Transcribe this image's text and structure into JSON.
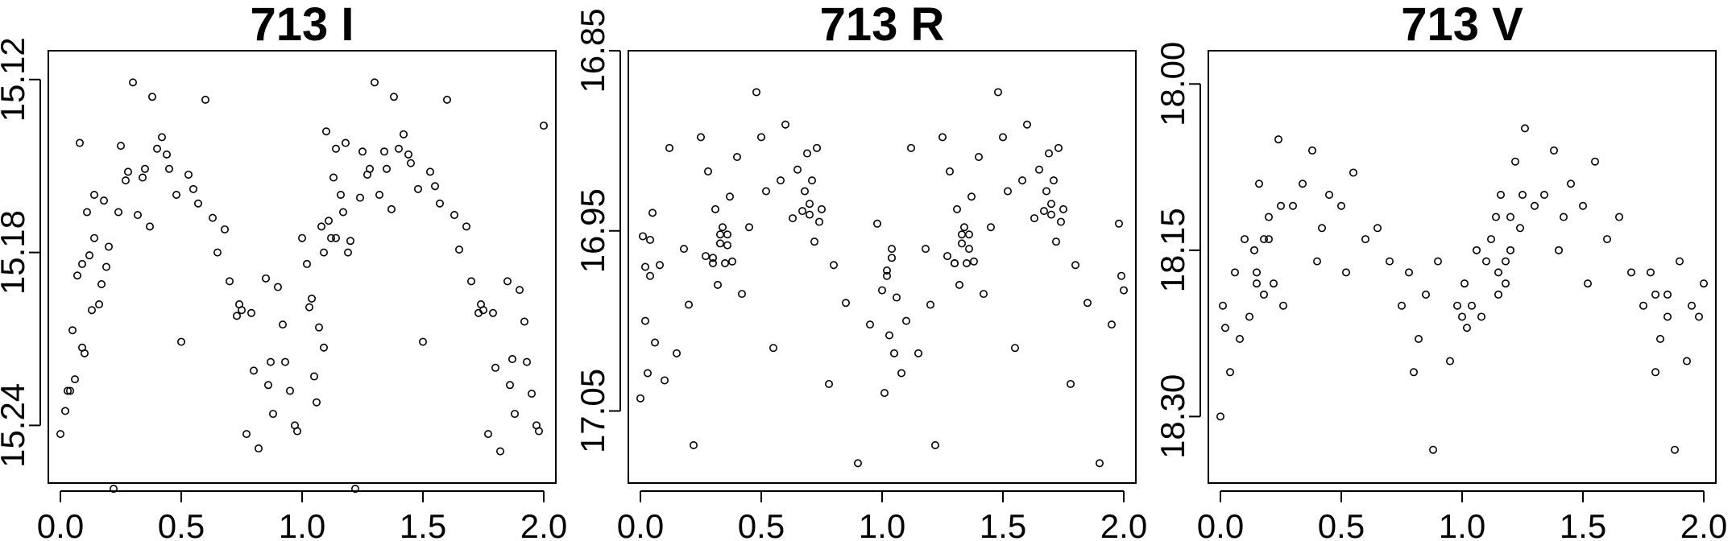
{
  "chart_data": [
    {
      "type": "scatter",
      "title": "713 I",
      "xlabel": "",
      "ylabel": "",
      "xlim": [
        -0.05,
        2.05
      ],
      "ylim": [
        15.26,
        15.11
      ],
      "xticks": [
        "0.0",
        "0.5",
        "1.0",
        "1.5",
        "2.0"
      ],
      "yticks": [
        "15.12",
        "15.18",
        "15.24"
      ],
      "grid": false,
      "series": [
        {
          "x": [
            0.0,
            0.02,
            0.03,
            0.05,
            0.06,
            0.07,
            0.08,
            0.09,
            0.1,
            0.11,
            0.12,
            0.13,
            0.14,
            0.16,
            0.17,
            0.18,
            0.2,
            0.22,
            0.24,
            0.25,
            0.27,
            0.3,
            0.32,
            0.34,
            0.37,
            0.38,
            0.4,
            0.42,
            0.45,
            0.48,
            0.5,
            0.53,
            0.55,
            0.6,
            0.63,
            0.65,
            0.68,
            0.7,
            0.73,
            0.75,
            0.77,
            0.8,
            0.82,
            0.85,
            0.87,
            0.88,
            0.9,
            0.92,
            0.95,
            0.97,
            1.0,
            1.02,
            1.03,
            1.05,
            1.06,
            1.07,
            1.08,
            1.09,
            1.1,
            1.11,
            1.12,
            1.13,
            1.14,
            1.16,
            1.17,
            1.18,
            1.2,
            1.22,
            1.24,
            1.25,
            1.27,
            1.3,
            1.32,
            1.34,
            1.37,
            1.38,
            1.4,
            1.42,
            1.45,
            1.48,
            1.5,
            1.53,
            1.55,
            1.6,
            1.63,
            1.65,
            1.68,
            1.7,
            1.73,
            1.75,
            1.77,
            1.8,
            1.82,
            1.85,
            1.87,
            1.88,
            1.9,
            1.92,
            1.95,
            1.97,
            2.0,
            0.04,
            0.09,
            0.14,
            0.19,
            0.28,
            0.35,
            0.44,
            0.57,
            0.74,
            0.79,
            0.86,
            0.93,
            0.98,
            1.04,
            1.09,
            1.14,
            1.19,
            1.28,
            1.35,
            1.44,
            1.57,
            1.74,
            1.79,
            1.86,
            1.93,
            1.98
          ],
          "y": [
            15.243,
            15.235,
            15.228,
            15.207,
            15.224,
            15.188,
            15.142,
            15.213,
            15.215,
            15.166,
            15.181,
            15.2,
            15.16,
            15.198,
            15.191,
            15.162,
            15.178,
            15.262,
            15.166,
            15.143,
            15.155,
            15.121,
            15.167,
            15.154,
            15.171,
            15.126,
            15.144,
            15.14,
            15.151,
            15.16,
            15.211,
            15.153,
            15.158,
            15.127,
            15.168,
            15.18,
            15.172,
            15.19,
            15.202,
            15.2,
            15.243,
            15.221,
            15.248,
            15.189,
            15.218,
            15.236,
            15.192,
            15.205,
            15.228,
            15.24,
            15.175,
            15.184,
            15.199,
            15.223,
            15.232,
            15.206,
            15.171,
            15.213,
            15.138,
            15.169,
            15.175,
            15.154,
            15.144,
            15.16,
            15.166,
            15.142,
            15.176,
            15.262,
            15.161,
            15.145,
            15.153,
            15.121,
            15.16,
            15.145,
            15.165,
            15.126,
            15.144,
            15.139,
            15.149,
            15.158,
            15.211,
            15.152,
            15.157,
            15.127,
            15.167,
            15.179,
            15.171,
            15.19,
            15.201,
            15.2,
            15.243,
            15.22,
            15.249,
            15.19,
            15.217,
            15.236,
            15.193,
            15.204,
            15.229,
            15.24,
            15.136,
            15.228,
            15.184,
            15.175,
            15.185,
            15.152,
            15.151,
            15.146,
            15.163,
            15.198,
            15.201,
            15.226,
            15.218,
            15.242,
            15.196,
            15.18,
            15.175,
            15.18,
            15.151,
            15.151,
            15.146,
            15.163,
            15.198,
            15.201,
            15.226,
            15.218,
            15.242
          ]
        }
      ]
    },
    {
      "type": "scatter",
      "title": "713 R",
      "xlabel": "",
      "ylabel": "",
      "xlim": [
        -0.05,
        2.05
      ],
      "ylim": [
        17.09,
        16.85
      ],
      "xticks": [
        "0.0",
        "0.5",
        "1.0",
        "1.5",
        "2.0"
      ],
      "yticks": [
        "16.85",
        "16.95",
        "17.05"
      ],
      "grid": false,
      "series": [
        {
          "x": [
            0.0,
            0.01,
            0.02,
            0.03,
            0.04,
            0.05,
            0.06,
            0.08,
            0.1,
            0.12,
            0.15,
            0.18,
            0.2,
            0.22,
            0.25,
            0.27,
            0.28,
            0.3,
            0.31,
            0.32,
            0.33,
            0.34,
            0.35,
            0.36,
            0.37,
            0.38,
            0.4,
            0.42,
            0.45,
            0.48,
            0.5,
            0.52,
            0.55,
            0.58,
            0.6,
            0.63,
            0.65,
            0.67,
            0.68,
            0.69,
            0.7,
            0.71,
            0.72,
            0.73,
            0.75,
            0.78,
            0.8,
            0.85,
            0.9,
            0.95,
            0.98,
            1.0,
            1.01,
            1.02,
            1.03,
            1.04,
            1.05,
            1.06,
            1.08,
            1.1,
            1.12,
            1.15,
            1.18,
            1.2,
            1.22,
            1.25,
            1.27,
            1.28,
            1.3,
            1.31,
            1.32,
            1.33,
            1.34,
            1.35,
            1.36,
            1.37,
            1.38,
            1.4,
            1.42,
            1.45,
            1.48,
            1.5,
            1.52,
            1.55,
            1.58,
            1.6,
            1.63,
            1.65,
            1.67,
            1.68,
            1.69,
            1.7,
            1.71,
            1.72,
            1.73,
            1.75,
            1.78,
            1.8,
            1.85,
            1.9,
            1.95,
            1.98,
            2.0,
            0.02,
            0.04,
            0.3,
            0.33,
            0.36,
            0.7,
            0.74,
            1.02,
            1.04,
            1.3,
            1.33,
            1.36,
            1.7,
            1.74,
            1.99
          ],
          "y": [
            17.043,
            16.953,
            17.0,
            17.029,
            16.975,
            16.94,
            17.012,
            16.969,
            17.033,
            16.904,
            17.018,
            16.96,
            16.991,
            17.069,
            16.898,
            16.964,
            16.917,
            16.968,
            16.938,
            16.98,
            16.957,
            16.948,
            16.968,
            16.952,
            16.931,
            16.967,
            16.909,
            16.985,
            16.948,
            16.873,
            16.898,
            16.928,
            17.015,
            16.922,
            16.891,
            16.943,
            16.916,
            16.939,
            16.928,
            16.907,
            16.941,
            16.922,
            16.956,
            16.904,
            16.938,
            17.035,
            16.969,
            16.99,
            17.079,
            17.002,
            16.946,
            16.983,
            17.04,
            16.975,
            17.008,
            16.96,
            17.018,
            16.987,
            17.029,
            17.0,
            16.904,
            17.018,
            16.96,
            16.991,
            17.069,
            16.898,
            16.964,
            16.917,
            16.968,
            16.938,
            16.98,
            16.957,
            16.948,
            16.968,
            16.952,
            16.931,
            16.967,
            16.909,
            16.985,
            16.948,
            16.873,
            16.898,
            16.928,
            17.015,
            16.922,
            16.891,
            16.943,
            16.916,
            16.939,
            16.928,
            16.907,
            16.941,
            16.922,
            16.956,
            16.904,
            16.938,
            17.035,
            16.969,
            16.99,
            17.079,
            17.002,
            16.946,
            16.983,
            16.97,
            16.955,
            16.965,
            16.952,
            16.958,
            16.935,
            16.945,
            16.972,
            16.965,
            16.968,
            16.952,
            16.96,
            16.935,
            16.945,
            16.975
          ]
        }
      ]
    },
    {
      "type": "scatter",
      "title": "713 V",
      "xlabel": "",
      "ylabel": "",
      "xlim": [
        -0.05,
        2.05
      ],
      "ylim": [
        18.36,
        17.97
      ],
      "xticks": [
        "0.0",
        "0.5",
        "1.0",
        "1.5",
        "2.0"
      ],
      "yticks": [
        "18.00",
        "18.15",
        "18.30"
      ],
      "grid": false,
      "series": [
        {
          "x": [
            0.0,
            0.01,
            0.02,
            0.04,
            0.06,
            0.08,
            0.1,
            0.12,
            0.14,
            0.15,
            0.16,
            0.18,
            0.2,
            0.22,
            0.24,
            0.26,
            0.3,
            0.34,
            0.38,
            0.4,
            0.42,
            0.45,
            0.5,
            0.52,
            0.55,
            0.6,
            0.65,
            0.7,
            0.75,
            0.78,
            0.8,
            0.82,
            0.85,
            0.88,
            0.9,
            0.95,
            0.98,
            1.0,
            1.01,
            1.02,
            1.04,
            1.06,
            1.08,
            1.1,
            1.12,
            1.14,
            1.15,
            1.16,
            1.18,
            1.2,
            1.22,
            1.24,
            1.26,
            1.3,
            1.34,
            1.38,
            1.4,
            1.42,
            1.45,
            1.5,
            1.52,
            1.55,
            1.6,
            1.65,
            1.7,
            1.75,
            1.78,
            1.8,
            1.82,
            1.85,
            1.88,
            1.9,
            1.93,
            1.95,
            1.98,
            2.0,
            0.15,
            0.2,
            0.25,
            0.18,
            1.15,
            1.2,
            1.25,
            1.18,
            1.8,
            1.85
          ],
          "y": [
            18.3,
            18.2,
            18.22,
            18.26,
            18.17,
            18.23,
            18.14,
            18.21,
            18.15,
            18.17,
            18.09,
            18.19,
            18.14,
            18.18,
            18.05,
            18.2,
            18.11,
            18.09,
            18.06,
            18.16,
            18.13,
            18.1,
            18.11,
            18.17,
            18.08,
            18.14,
            18.13,
            18.16,
            18.2,
            18.17,
            18.26,
            18.23,
            18.19,
            18.33,
            18.16,
            18.25,
            18.2,
            18.21,
            18.18,
            18.22,
            18.2,
            18.15,
            18.21,
            18.16,
            18.14,
            18.12,
            18.17,
            18.1,
            18.18,
            18.12,
            18.07,
            18.13,
            18.04,
            18.11,
            18.1,
            18.06,
            18.15,
            18.12,
            18.09,
            18.11,
            18.18,
            18.07,
            18.14,
            18.12,
            18.17,
            18.2,
            18.17,
            18.26,
            18.23,
            18.19,
            18.33,
            18.16,
            18.25,
            18.2,
            18.21,
            18.18,
            18.18,
            18.12,
            18.11,
            18.14,
            18.19,
            18.15,
            18.1,
            18.16,
            18.19,
            18.21
          ]
        }
      ]
    }
  ]
}
